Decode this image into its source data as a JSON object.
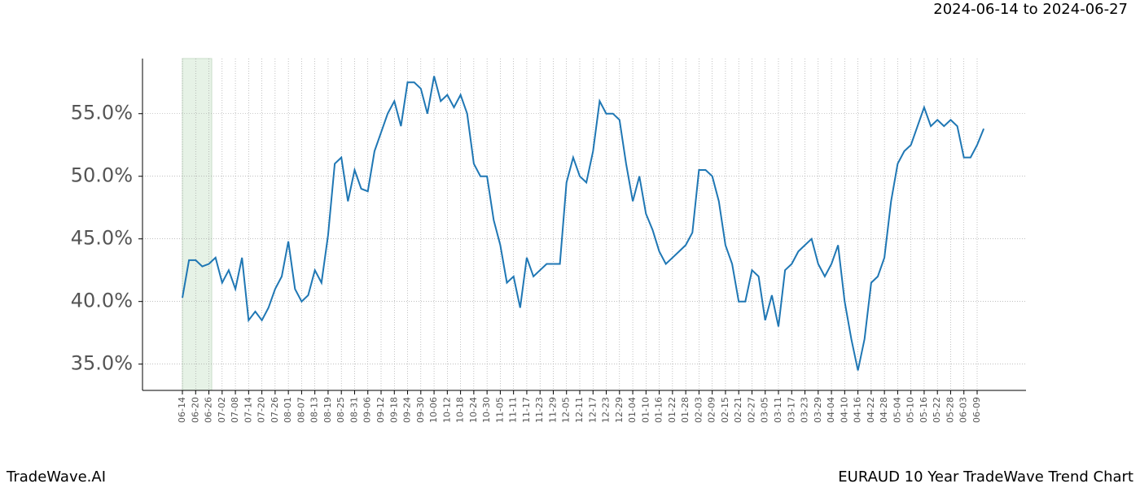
{
  "chart_data": {
    "type": "line",
    "title": "2024-06-14 to 2024-06-27",
    "footer_left": "TradeWave.AI",
    "footer_right": "EURAUD 10 Year TradeWave Trend Chart",
    "categories": [
      "06-14",
      null,
      "06-20",
      null,
      "06-26",
      null,
      "07-02",
      null,
      "07-08",
      null,
      "07-14",
      null,
      "07-20",
      null,
      "07-26",
      null,
      "08-01",
      null,
      "08-07",
      null,
      "08-13",
      null,
      "08-19",
      null,
      "08-25",
      null,
      "08-31",
      null,
      "09-06",
      null,
      "09-12",
      null,
      "09-18",
      null,
      "09-24",
      null,
      "09-30",
      null,
      "10-06",
      null,
      "10-12",
      null,
      "10-18",
      null,
      "10-24",
      null,
      "10-30",
      null,
      "11-05",
      null,
      "11-11",
      null,
      "11-17",
      null,
      "11-23",
      null,
      "11-29",
      null,
      "12-05",
      null,
      "12-11",
      null,
      "12-17",
      null,
      "12-23",
      null,
      "12-29",
      null,
      "01-04",
      null,
      "01-10",
      null,
      "01-16",
      null,
      "01-22",
      null,
      "01-28",
      null,
      "02-03",
      null,
      "02-09",
      null,
      "02-15",
      null,
      "02-21",
      null,
      "02-27",
      null,
      "03-05",
      null,
      "03-11",
      null,
      "03-17",
      null,
      "03-23",
      null,
      "03-29",
      null,
      "04-04",
      null,
      "04-10",
      null,
      "04-16",
      null,
      "04-22",
      null,
      "04-28",
      null,
      "05-04",
      null,
      "05-10",
      null,
      "05-16",
      null,
      "05-22",
      null,
      "05-28",
      null,
      "06-03",
      null,
      "06-09",
      null
    ],
    "values": [
      40.3,
      43.3,
      43.3,
      42.8,
      43.0,
      43.5,
      41.5,
      42.5,
      41.0,
      43.5,
      38.5,
      39.2,
      38.5,
      39.5,
      41.0,
      42.0,
      44.8,
      41.0,
      40.0,
      40.5,
      42.5,
      41.5,
      45.3,
      51.0,
      51.5,
      48.0,
      50.5,
      49.0,
      48.8,
      52.0,
      53.5,
      55.0,
      56.0,
      54.0,
      57.5,
      57.5,
      57.0,
      55.0,
      58.0,
      56.0,
      56.5,
      55.5,
      56.5,
      55.0,
      51.0,
      50.0,
      50.0,
      46.5,
      44.5,
      41.5,
      42.0,
      39.5,
      43.5,
      42.0,
      42.5,
      43.0,
      43.0,
      43.0,
      49.5,
      51.5,
      50.0,
      49.5,
      52.0,
      56.0,
      55.0,
      55.0,
      54.5,
      51.0,
      48.0,
      50.0,
      47.0,
      45.7,
      44.0,
      43.0,
      43.5,
      44.0,
      44.5,
      45.5,
      50.5,
      50.5,
      50.0,
      48.0,
      44.5,
      43.0,
      40.0,
      40.0,
      42.5,
      42.0,
      38.5,
      40.5,
      38.0,
      42.5,
      43.0,
      44.0,
      44.5,
      45.0,
      43.0,
      42.0,
      43.0,
      44.5,
      40.0,
      37.0,
      34.5,
      37.0,
      41.5,
      42.0,
      43.5,
      48.0,
      51.0,
      52.0,
      52.5,
      54.0,
      55.5,
      54.0,
      54.5,
      54.0,
      54.5,
      54.0,
      51.5,
      51.5,
      52.5,
      53.8
    ],
    "color": "#1f77b4",
    "ylim": [
      32.9,
      59.4
    ],
    "yticks": [
      {
        "value": 35,
        "label": "35.0%"
      },
      {
        "value": 40,
        "label": "40.0%"
      },
      {
        "value": 45,
        "label": "45.0%"
      },
      {
        "value": 50,
        "label": "50.0%"
      },
      {
        "value": 55,
        "label": "55.0%"
      }
    ],
    "grid": true
  }
}
